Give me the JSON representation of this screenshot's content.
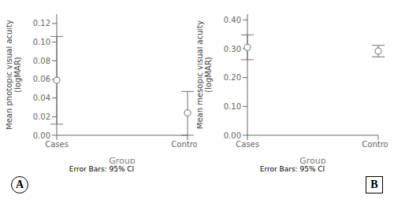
{
  "chart_data": [
    {
      "type": "scatter",
      "panel_label": "A",
      "xlabel": "Group",
      "ylabel": "Mean photopic visual acuity\n(logMAR)",
      "categories": [
        "Cases",
        "Controls"
      ],
      "values": [
        0.059,
        0.024
      ],
      "ci_lower": [
        0.012,
        0.0
      ],
      "ci_upper": [
        0.106,
        0.047
      ],
      "ylim": [
        0.0,
        0.13
      ],
      "yticks": [
        {
          "value": 0.0,
          "label": "0.00"
        },
        0.02,
        0.04,
        0.06,
        0.08,
        {
          "value": 0.1,
          "label": "0.10"
        },
        0.12
      ],
      "color": "#888888",
      "marker": "circle",
      "footnote": "Error Bars: 95% CI"
    },
    {
      "type": "scatter",
      "panel_label": "B",
      "xlabel": "Group",
      "ylabel": "Mean mesopic visual acuity\n(logMAR)",
      "categories": [
        "Cases",
        "Controls"
      ],
      "values": [
        0.305,
        0.292
      ],
      "ci_lower": [
        0.262,
        0.272
      ],
      "ci_upper": [
        0.348,
        0.312
      ],
      "ylim": [
        0.0,
        0.42
      ],
      "yticks": [
        {
          "value": 0.0,
          "label": "0.00"
        },
        {
          "value": 0.1,
          "label": "0.10"
        },
        {
          "value": 0.2,
          "label": "0.20"
        },
        {
          "value": 0.3,
          "label": "0.30"
        },
        {
          "value": 0.4,
          "label": "0.40"
        }
      ],
      "color": "#888888",
      "marker": "circle",
      "footnote": "Error Bars: 95% CI"
    }
  ]
}
